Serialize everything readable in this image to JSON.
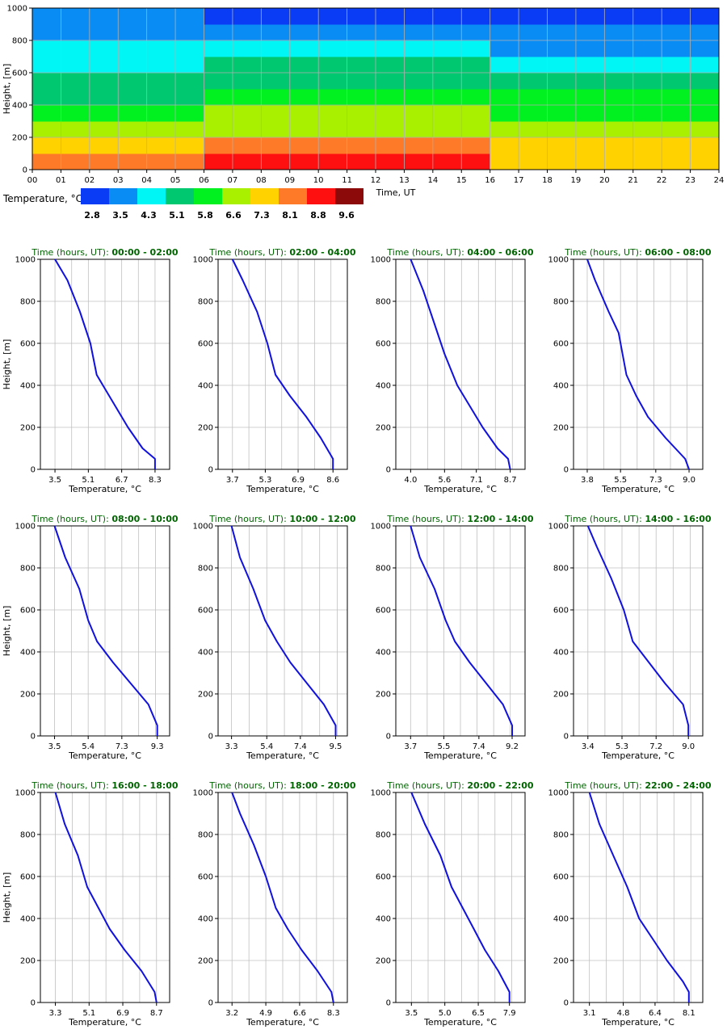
{
  "heatmap": {
    "ylabel": "Height, [m]",
    "xlabel": "Time, UT",
    "y_ticks": [
      "0",
      "200",
      "400",
      "600",
      "800",
      "1000"
    ],
    "x_ticks": [
      "00",
      "01",
      "02",
      "03",
      "04",
      "05",
      "06",
      "07",
      "08",
      "09",
      "10",
      "11",
      "12",
      "13",
      "14",
      "15",
      "16",
      "17",
      "18",
      "19",
      "20",
      "21",
      "22",
      "23",
      "24"
    ],
    "legend_title": "Temperature, °C",
    "legend_values": [
      "2.8",
      "3.5",
      "4.3",
      "5.1",
      "5.8",
      "6.6",
      "7.3",
      "8.1",
      "8.8",
      "9.6"
    ],
    "palette": [
      "#0a3cf5",
      "#0a8cf5",
      "#00f5f5",
      "#00c870",
      "#00f020",
      "#a8f000",
      "#ffd200",
      "#ff7a28",
      "#ff1010",
      "#8c0a0a"
    ]
  },
  "profiles_common": {
    "title_prefix": "Time (hours, UT): ",
    "xlabel": "Temperature, °C",
    "ylabel": "Height, [m]",
    "y_ticks": [
      "0",
      "200",
      "400",
      "600",
      "800",
      "1000"
    ],
    "line_color": "#1010e0",
    "grid": true
  },
  "chart_data": [
    {
      "type": "heatmap",
      "xlabel": "Time, UT",
      "ylabel": "Height, [m]",
      "xlim": [
        0,
        24
      ],
      "ylim": [
        0,
        1000
      ],
      "colorbar_label": "Temperature, °C",
      "colorbar_levels": [
        2.8,
        3.5,
        4.3,
        5.1,
        5.8,
        6.6,
        7.3,
        8.1,
        8.8,
        9.6
      ],
      "height_bands_m": [
        0,
        100,
        200,
        300,
        400,
        500,
        600,
        700,
        800,
        900,
        1000
      ],
      "band_levels_by_hour": {
        "00-06": [
          8.1,
          7.3,
          6.6,
          5.8,
          5.1,
          5.1,
          4.3,
          4.3,
          3.5,
          3.5
        ],
        "06-16": [
          8.8,
          8.1,
          6.6,
          6.6,
          5.8,
          5.1,
          5.1,
          4.3,
          3.5,
          2.8
        ],
        "16-24": [
          7.3,
          7.3,
          6.6,
          5.8,
          5.8,
          5.1,
          4.3,
          3.5,
          3.5,
          2.8
        ]
      }
    },
    {
      "type": "line",
      "title": "00:00 - 02:00",
      "xlabel": "Temperature, °C",
      "ylabel": "Height, [m]",
      "xticks": [
        "3.5",
        "5.1",
        "6.7",
        "8.3"
      ],
      "xlim": [
        2.8,
        9.0
      ],
      "ylim": [
        0,
        1000
      ],
      "series": [
        {
          "x": [
            3.5,
            4.1,
            4.7,
            5.2,
            5.5,
            5.8,
            6.4,
            7.0,
            7.7,
            8.3,
            8.3
          ],
          "y": [
            1000,
            900,
            750,
            600,
            450,
            400,
            300,
            200,
            100,
            50,
            0
          ]
        }
      ]
    },
    {
      "type": "line",
      "title": "02:00 - 04:00",
      "xlabel": "Temperature, °C",
      "ylabel": "Height, [m]",
      "xticks": [
        "3.7",
        "5.3",
        "6.9",
        "8.6"
      ],
      "xlim": [
        3.0,
        9.3
      ],
      "ylim": [
        0,
        1000
      ],
      "series": [
        {
          "x": [
            3.7,
            4.2,
            4.9,
            5.4,
            5.8,
            6.5,
            7.3,
            8.0,
            8.6,
            8.6
          ],
          "y": [
            1000,
            900,
            750,
            600,
            450,
            350,
            250,
            150,
            50,
            0
          ]
        }
      ]
    },
    {
      "type": "line",
      "title": "04:00 - 06:00",
      "xlabel": "Temperature, °C",
      "ylabel": "Height, [m]",
      "xticks": [
        "4.0",
        "5.6",
        "7.1",
        "8.7"
      ],
      "xlim": [
        3.3,
        9.4
      ],
      "ylim": [
        0,
        1000
      ],
      "series": [
        {
          "x": [
            4.0,
            4.6,
            5.1,
            5.6,
            6.2,
            6.8,
            7.4,
            8.1,
            8.6,
            8.7
          ],
          "y": [
            1000,
            850,
            700,
            550,
            400,
            300,
            200,
            100,
            50,
            0
          ]
        }
      ]
    },
    {
      "type": "line",
      "title": "06:00 - 08:00",
      "xlabel": "Temperature, °C",
      "ylabel": "Height, [m]",
      "xticks": [
        "3.8",
        "5.5",
        "7.3",
        "9.0"
      ],
      "xlim": [
        3.1,
        9.7
      ],
      "ylim": [
        0,
        1000
      ],
      "series": [
        {
          "x": [
            3.8,
            4.2,
            4.9,
            5.4,
            5.8,
            6.3,
            6.9,
            7.8,
            8.8,
            9.0
          ],
          "y": [
            1000,
            900,
            750,
            650,
            450,
            350,
            250,
            150,
            50,
            0
          ]
        }
      ]
    },
    {
      "type": "line",
      "title": "08:00 - 10:00",
      "xlabel": "Temperature, °C",
      "ylabel": "Height, [m]",
      "xticks": [
        "3.5",
        "5.4",
        "7.3",
        "9.3"
      ],
      "xlim": [
        2.7,
        10.0
      ],
      "ylim": [
        0,
        1000
      ],
      "series": [
        {
          "x": [
            3.5,
            4.1,
            4.9,
            5.4,
            5.9,
            6.8,
            7.8,
            8.8,
            9.3,
            9.3
          ],
          "y": [
            1000,
            850,
            700,
            550,
            450,
            350,
            250,
            150,
            50,
            0
          ]
        }
      ]
    },
    {
      "type": "line",
      "title": "10:00 - 12:00",
      "xlabel": "Temperature, °C",
      "ylabel": "Height, [m]",
      "xticks": [
        "3.3",
        "5.4",
        "7.4",
        "9.5"
      ],
      "xlim": [
        2.5,
        10.2
      ],
      "ylim": [
        0,
        1000
      ],
      "series": [
        {
          "x": [
            3.3,
            3.8,
            4.6,
            5.3,
            6.0,
            6.8,
            7.8,
            8.8,
            9.5,
            9.5
          ],
          "y": [
            1000,
            850,
            700,
            550,
            450,
            350,
            250,
            150,
            50,
            0
          ]
        }
      ]
    },
    {
      "type": "line",
      "title": "12:00 - 14:00",
      "xlabel": "Temperature, °C",
      "ylabel": "Height, [m]",
      "xticks": [
        "3.7",
        "5.5",
        "7.4",
        "9.2"
      ],
      "xlim": [
        2.9,
        9.9
      ],
      "ylim": [
        0,
        1000
      ],
      "series": [
        {
          "x": [
            3.7,
            4.2,
            5.0,
            5.6,
            6.1,
            6.9,
            7.8,
            8.7,
            9.2,
            9.2
          ],
          "y": [
            1000,
            850,
            700,
            550,
            450,
            350,
            250,
            150,
            50,
            0
          ]
        }
      ]
    },
    {
      "type": "line",
      "title": "14:00 - 16:00",
      "xlabel": "Temperature, °C",
      "ylabel": "Height, [m]",
      "xticks": [
        "3.4",
        "5.3",
        "7.2",
        "9.0"
      ],
      "xlim": [
        2.6,
        9.8
      ],
      "ylim": [
        0,
        1000
      ],
      "series": [
        {
          "x": [
            3.4,
            3.9,
            4.7,
            5.4,
            5.9,
            6.8,
            7.7,
            8.7,
            9.0,
            9.0
          ],
          "y": [
            1000,
            900,
            750,
            600,
            450,
            350,
            250,
            150,
            50,
            0
          ]
        }
      ]
    },
    {
      "type": "line",
      "title": "16:00 - 18:00",
      "xlabel": "Temperature, °C",
      "ylabel": "Height, [m]",
      "xticks": [
        "3.3",
        "5.1",
        "6.9",
        "8.7"
      ],
      "xlim": [
        2.5,
        9.4
      ],
      "ylim": [
        0,
        1000
      ],
      "series": [
        {
          "x": [
            3.3,
            3.8,
            4.5,
            5.0,
            5.6,
            6.2,
            7.0,
            7.9,
            8.6,
            8.7
          ],
          "y": [
            1000,
            850,
            700,
            550,
            450,
            350,
            250,
            150,
            50,
            0
          ]
        }
      ]
    },
    {
      "type": "line",
      "title": "18:00 - 20:00",
      "xlabel": "Temperature, °C",
      "ylabel": "Height, [m]",
      "xticks": [
        "3.2",
        "4.9",
        "6.6",
        "8.3"
      ],
      "xlim": [
        2.5,
        9.0
      ],
      "ylim": [
        0,
        1000
      ],
      "series": [
        {
          "x": [
            3.2,
            3.6,
            4.3,
            4.9,
            5.4,
            6.0,
            6.7,
            7.5,
            8.2,
            8.3
          ],
          "y": [
            1000,
            900,
            750,
            600,
            450,
            350,
            250,
            150,
            50,
            0
          ]
        }
      ]
    },
    {
      "type": "line",
      "title": "20:00 - 22:00",
      "xlabel": "Temperature, °C",
      "ylabel": "Height, [m]",
      "xticks": [
        "3.5",
        "5.0",
        "6.5",
        "7.9"
      ],
      "xlim": [
        2.8,
        8.6
      ],
      "ylim": [
        0,
        1000
      ],
      "series": [
        {
          "x": [
            3.5,
            4.1,
            4.8,
            5.3,
            5.8,
            6.3,
            6.8,
            7.4,
            7.9,
            7.9
          ],
          "y": [
            1000,
            850,
            700,
            550,
            450,
            350,
            250,
            150,
            50,
            0
          ]
        }
      ]
    },
    {
      "type": "line",
      "title": "22:00 - 24:00",
      "xlabel": "Temperature, °C",
      "ylabel": "Height, [m]",
      "xticks": [
        "3.1",
        "4.8",
        "6.4",
        "8.1"
      ],
      "xlim": [
        2.3,
        8.8
      ],
      "ylim": [
        0,
        1000
      ],
      "series": [
        {
          "x": [
            3.1,
            3.6,
            4.3,
            5.0,
            5.6,
            6.3,
            7.0,
            7.8,
            8.1,
            8.1
          ],
          "y": [
            1000,
            850,
            700,
            550,
            400,
            300,
            200,
            100,
            50,
            0
          ]
        }
      ]
    }
  ]
}
